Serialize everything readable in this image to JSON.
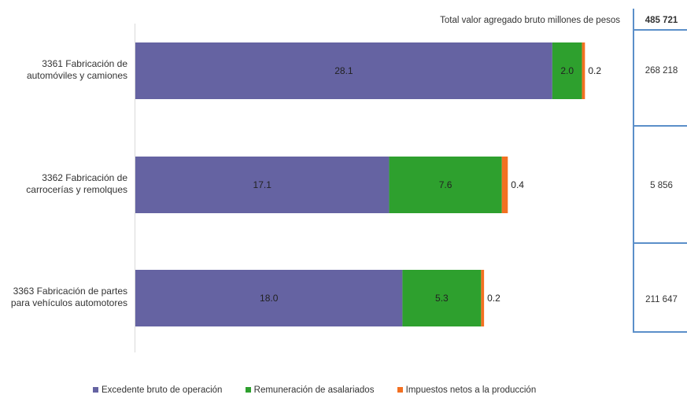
{
  "chart_data": {
    "type": "bar",
    "orientation": "horizontal",
    "stacked": true,
    "categories": [
      [
        "3361 Fabricación de",
        "automóviles y camiones"
      ],
      [
        "3362 Fabricación de",
        "carrocerías y remolques"
      ],
      [
        "3363 Fabricación de partes",
        "para vehículos automotores"
      ]
    ],
    "series": [
      {
        "name": "Excedente bruto de operación",
        "color": "#6563a2",
        "values": [
          28.1,
          17.1,
          18.0
        ],
        "labels": [
          "28.1",
          "17.1",
          "18.0"
        ]
      },
      {
        "name": "Remuneración de asalariados",
        "color": "#2ea02e",
        "values": [
          2.0,
          7.6,
          5.3
        ],
        "labels": [
          "2.0",
          "7.6",
          "5.3"
        ]
      },
      {
        "name": "Impuestos netos a la producción",
        "color": "#f37021",
        "values": [
          0.2,
          0.4,
          0.2
        ],
        "labels": [
          "0.2",
          "0.4",
          "0.2"
        ]
      }
    ],
    "xlim": [
      0,
      30.6
    ],
    "grid": false,
    "legend_position": "bottom"
  },
  "totals_table": {
    "header_label": "Total  valor agregado bruto millones de pesos",
    "header_value": "485 721",
    "values": [
      "268 218",
      "5 856",
      "211 647"
    ]
  }
}
